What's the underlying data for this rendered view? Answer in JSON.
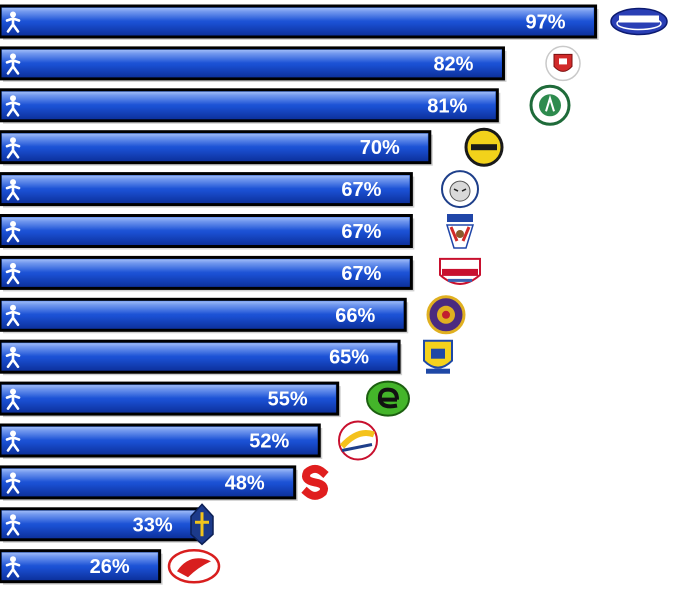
{
  "chart_data": {
    "type": "bar",
    "orientation": "horizontal",
    "xlim": [
      0,
      100
    ],
    "grid": false,
    "values": [
      97,
      82,
      81,
      70,
      67,
      67,
      67,
      66,
      65,
      55,
      52,
      48,
      33,
      26
    ],
    "labels": [
      "97%",
      "82%",
      "81%",
      "70%",
      "67%",
      "67%",
      "67%",
      "66%",
      "65%",
      "55%",
      "52%",
      "48%",
      "33%",
      "26%"
    ],
    "bar_color": "#1a56d8",
    "bar_border_color": "#000000",
    "icon": "person-icon",
    "logo_icons": [
      "kometa-logo-icon",
      "red-crest-logo-icon",
      "green-round-logo-icon",
      "yellow-black-round-logo-icon",
      "tiger-logo-icon",
      "indian-head-logo-icon",
      "mountfield-shield-logo-icon",
      "purple-round-logo-icon",
      "yellow-crest-logo-icon",
      "green-e-logo-icon",
      "red-yellow-round-logo-icon",
      "red-s-logo-icon",
      "knight-logo-icon",
      "red-bird-logo-icon"
    ]
  }
}
